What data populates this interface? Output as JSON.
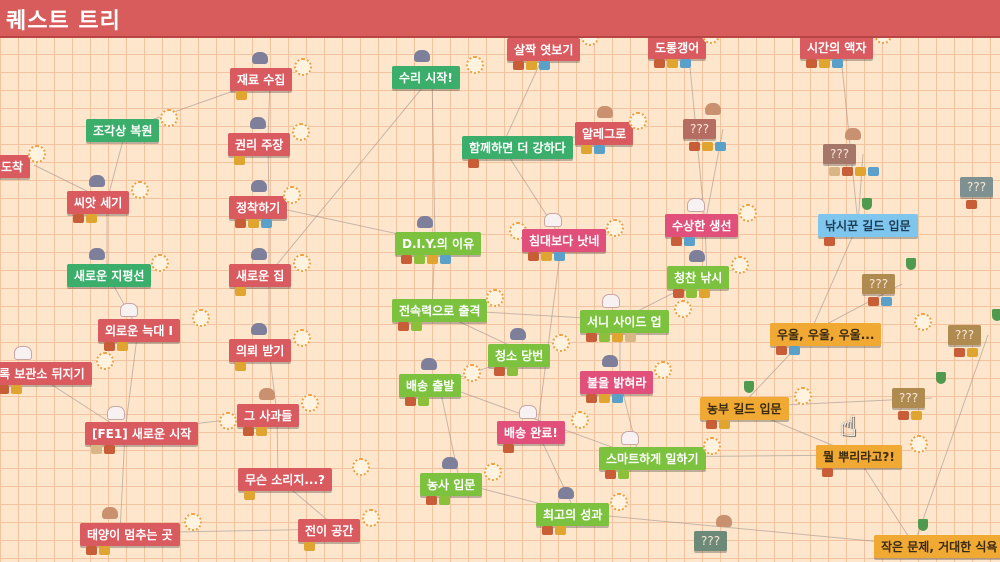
{
  "title": "퀘스트 트리",
  "colors": {
    "header": "#d95c5c",
    "board": "#fde6cc",
    "grid": "#f3c3a0"
  },
  "quests": [
    {
      "id": "q1",
      "label": "재료 수집",
      "color": "red",
      "avatar": "gray",
      "icons": [
        "key"
      ]
    },
    {
      "id": "q2",
      "label": "권리 주장",
      "color": "red",
      "avatar": "gray",
      "icons": [
        "key"
      ]
    },
    {
      "id": "q3",
      "label": "정착하기",
      "color": "red",
      "avatar": "gray",
      "icons": [
        "chest",
        "key",
        "gem"
      ]
    },
    {
      "id": "q4",
      "label": "새로운 집",
      "color": "red",
      "avatar": "gray",
      "icons": [
        "key"
      ]
    },
    {
      "id": "q5",
      "label": "의뢰 받기",
      "color": "red",
      "avatar": "gray",
      "icons": [
        "key"
      ]
    },
    {
      "id": "q6",
      "label": "그 사과들",
      "color": "red",
      "avatar": "pet",
      "icons": [
        "chest",
        "key"
      ]
    },
    {
      "id": "q7",
      "label": "무슨 소리지...?",
      "color": "red",
      "avatar": "none",
      "icons": [
        "key"
      ]
    },
    {
      "id": "q8",
      "label": "전이 공간",
      "color": "red",
      "avatar": "none",
      "icons": [
        "key"
      ]
    },
    {
      "id": "q9",
      "label": "조각상 복원",
      "color": "green",
      "avatar": "none",
      "icons": []
    },
    {
      "id": "q10",
      "label": "씨앗 세기",
      "color": "red",
      "avatar": "gray",
      "icons": [
        "chest",
        "key"
      ]
    },
    {
      "id": "q11",
      "label": "새로운 지평선",
      "color": "green",
      "avatar": "gray",
      "icons": []
    },
    {
      "id": "q12",
      "label": "외로운 늑대 I",
      "color": "red",
      "avatar": "white",
      "icons": [
        "chest",
        "key"
      ]
    },
    {
      "id": "q13",
      "label": "록 보관소 뒤지기",
      "color": "red",
      "avatar": "white",
      "icons": [
        "chest",
        "key"
      ]
    },
    {
      "id": "q14",
      "label": "[FE1] 새로운 시작",
      "color": "red",
      "avatar": "white",
      "icons": [
        "scroll",
        "chest"
      ]
    },
    {
      "id": "q15",
      "label": "태양이 멈추는 곳",
      "color": "red",
      "avatar": "pet",
      "icons": [
        "chest",
        "key"
      ]
    },
    {
      "id": "q16",
      "label": "도착",
      "color": "red",
      "avatar": "none",
      "icons": []
    },
    {
      "id": "q17",
      "label": "수리 시작!",
      "color": "green",
      "avatar": "gray",
      "icons": []
    },
    {
      "id": "q18",
      "label": "살짝 엿보기",
      "color": "red",
      "avatar": "none",
      "icons": [
        "chest",
        "key",
        "gem"
      ]
    },
    {
      "id": "q19",
      "label": "함께하면 더 강하다",
      "color": "green",
      "avatar": "none",
      "icons": [
        "chest"
      ]
    },
    {
      "id": "q20",
      "label": "알레그로",
      "color": "red",
      "avatar": "pet",
      "icons": [
        "key",
        "gem"
      ]
    },
    {
      "id": "q21",
      "label": "D.I.Y.의 이유",
      "color": "lime",
      "avatar": "gray",
      "icons": [
        "chest",
        "leaf",
        "key",
        "gem"
      ]
    },
    {
      "id": "q22",
      "label": "침대보다 낫네",
      "color": "pink",
      "avatar": "white",
      "icons": [
        "chest",
        "key",
        "gem"
      ]
    },
    {
      "id": "q23",
      "label": "전속력으로 출격",
      "color": "lime",
      "avatar": "none",
      "icons": [
        "chest",
        "leaf"
      ]
    },
    {
      "id": "q24",
      "label": "청소 당번",
      "color": "lime",
      "avatar": "gray",
      "icons": [
        "chest",
        "leaf"
      ]
    },
    {
      "id": "q25",
      "label": "배송 출발",
      "color": "lime",
      "avatar": "gray",
      "icons": [
        "chest",
        "leaf"
      ]
    },
    {
      "id": "q26",
      "label": "배송 완료!",
      "color": "pink",
      "avatar": "white",
      "icons": [
        "chest"
      ]
    },
    {
      "id": "q27",
      "label": "농사 입문",
      "color": "lime",
      "avatar": "gray",
      "icons": [
        "chest",
        "leaf"
      ]
    },
    {
      "id": "q28",
      "label": "최고의 성과",
      "color": "lime",
      "avatar": "gray",
      "icons": [
        "chest",
        "key"
      ]
    },
    {
      "id": "q29",
      "label": "도롱갱어",
      "color": "red",
      "avatar": "none",
      "icons": [
        "chest",
        "key",
        "gem"
      ]
    },
    {
      "id": "q30",
      "label": "시간의 액자",
      "color": "red",
      "avatar": "none",
      "icons": [
        "chest",
        "key",
        "gem"
      ]
    },
    {
      "id": "q31",
      "label": "???",
      "color": "u1",
      "avatar": "pet",
      "icons": [
        "chest",
        "key",
        "gem"
      ]
    },
    {
      "id": "q32",
      "label": "???",
      "color": "u2",
      "avatar": "pet",
      "icons": [
        "scroll",
        "chest",
        "key",
        "gem"
      ]
    },
    {
      "id": "q33",
      "label": "수상한 생선",
      "color": "pink",
      "avatar": "white",
      "icons": [
        "chest",
        "gem"
      ]
    },
    {
      "id": "q34",
      "label": "낚시꾼 길드 입문",
      "color": "blue",
      "avatar": "shield",
      "icons": [
        "chest"
      ]
    },
    {
      "id": "q35",
      "label": "청찬 낚시",
      "color": "lime",
      "avatar": "gray",
      "icons": [
        "chest",
        "leaf",
        "key"
      ]
    },
    {
      "id": "q36",
      "label": "서니 사이드 업",
      "color": "lime",
      "avatar": "white",
      "icons": [
        "chest",
        "leaf",
        "key",
        "scroll"
      ]
    },
    {
      "id": "q37",
      "label": "불을 밝혀라",
      "color": "pink",
      "avatar": "gray",
      "icons": [
        "chest",
        "key",
        "gem"
      ]
    },
    {
      "id": "q38",
      "label": "스마트하게 일하기",
      "color": "lime",
      "avatar": "white",
      "icons": [
        "chest",
        "leaf"
      ]
    },
    {
      "id": "q39",
      "label": "???",
      "color": "u4",
      "avatar": "shield",
      "icons": [
        "chest",
        "gem"
      ]
    },
    {
      "id": "q40",
      "label": "우울, 우울, 우울...",
      "color": "orange",
      "avatar": "none",
      "icons": [
        "chest",
        "gem"
      ]
    },
    {
      "id": "q41",
      "label": "농부 길드 입문",
      "color": "orange",
      "avatar": "shield",
      "icons": [
        "chest",
        "key"
      ]
    },
    {
      "id": "q42",
      "label": "???",
      "color": "u4",
      "avatar": "shield",
      "icons": [
        "chest",
        "key"
      ]
    },
    {
      "id": "q43",
      "label": "뭘 뿌리라고?!",
      "color": "orange",
      "avatar": "none",
      "icons": [
        "chest"
      ]
    },
    {
      "id": "q44",
      "label": "???",
      "color": "u3",
      "avatar": "shield",
      "icons": [
        "chest"
      ]
    },
    {
      "id": "q45",
      "label": "???",
      "color": "u4",
      "avatar": "shield",
      "icons": [
        "chest",
        "key"
      ]
    },
    {
      "id": "q46",
      "label": "???",
      "color": "u5",
      "avatar": "pet",
      "icons": []
    },
    {
      "id": "q47",
      "label": "작은 문제, 거대한 식욕",
      "color": "orange",
      "avatar": "shield",
      "icons": []
    }
  ],
  "connections": [
    [
      "q1",
      "q2"
    ],
    [
      "q2",
      "q3"
    ],
    [
      "q3",
      "q4"
    ],
    [
      "q4",
      "q5"
    ],
    [
      "q5",
      "q6"
    ],
    [
      "q6",
      "q7"
    ],
    [
      "q7",
      "q8"
    ],
    [
      "q17",
      "q21"
    ],
    [
      "q21",
      "q23"
    ],
    [
      "q23",
      "q24"
    ],
    [
      "q24",
      "q25"
    ],
    [
      "q25",
      "q27"
    ],
    [
      "q27",
      "q28"
    ],
    [
      "q19",
      "q22"
    ],
    [
      "q22",
      "q26"
    ],
    [
      "q26",
      "q28"
    ],
    [
      "q33",
      "q35"
    ],
    [
      "q35",
      "q36"
    ],
    [
      "q36",
      "q37"
    ],
    [
      "q37",
      "q38"
    ],
    [
      "q38",
      "q43"
    ],
    [
      "q41",
      "q43"
    ],
    [
      "q40",
      "q41"
    ],
    [
      "q34",
      "q40"
    ],
    [
      "q18",
      "q19"
    ],
    [
      "q20",
      "q19"
    ],
    [
      "q14",
      "q13"
    ],
    [
      "q14",
      "q12"
    ],
    [
      "q12",
      "q11"
    ],
    [
      "q11",
      "q10"
    ],
    [
      "q10",
      "q9"
    ],
    [
      "q14",
      "q6"
    ],
    [
      "q14",
      "q15"
    ],
    [
      "q15",
      "q8"
    ],
    [
      "q4",
      "q17"
    ],
    [
      "q3",
      "q21"
    ],
    [
      "q29",
      "q33"
    ],
    [
      "q30",
      "q34"
    ],
    [
      "q31",
      "q33"
    ],
    [
      "q32",
      "q34"
    ],
    [
      "q9",
      "q1"
    ],
    [
      "q16",
      "q10"
    ],
    [
      "q23",
      "q36"
    ],
    [
      "q25",
      "q38"
    ],
    [
      "q28",
      "q47"
    ],
    [
      "q43",
      "q47"
    ],
    [
      "q45",
      "q47"
    ],
    [
      "q42",
      "q41"
    ],
    [
      "q39",
      "q40"
    ]
  ]
}
